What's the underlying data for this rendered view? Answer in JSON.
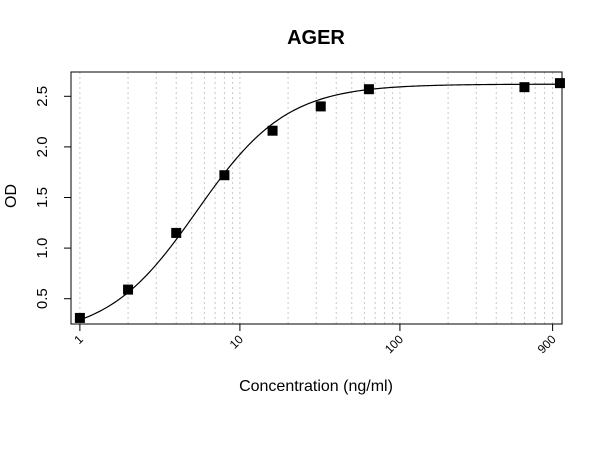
{
  "chart_data": {
    "type": "scatter",
    "title": "AGER",
    "xlabel": "Concentration (ng/ml)",
    "ylabel": "OD",
    "x_scale": "log",
    "xlim": [
      0.88,
      1030
    ],
    "ylim": [
      0.25,
      2.74
    ],
    "x_tick_labels": [
      {
        "value": 1,
        "label": "1"
      },
      {
        "value": 10,
        "label": "10"
      },
      {
        "value": 100,
        "label": "100"
      },
      {
        "value": 900,
        "label": "900"
      }
    ],
    "y_ticks": [
      0.5,
      1.0,
      1.5,
      2.0,
      2.5
    ],
    "y_tick_labels": [
      "0.5",
      "1.0",
      "1.5",
      "2.0",
      "2.5"
    ],
    "grid": "vertical dotted (log minor)",
    "marker": "filled square",
    "color": "#000000",
    "points": {
      "x": [
        1,
        2,
        4,
        8,
        16,
        32,
        64,
        600,
        1000
      ],
      "y": [
        0.31,
        0.59,
        1.15,
        1.72,
        2.16,
        2.4,
        2.57,
        2.59,
        2.63
      ]
    },
    "fit_curve": {
      "model": "4PL",
      "bottom": 0.12,
      "top": 2.62,
      "ec50": 5.4,
      "hill": 1.55
    }
  }
}
